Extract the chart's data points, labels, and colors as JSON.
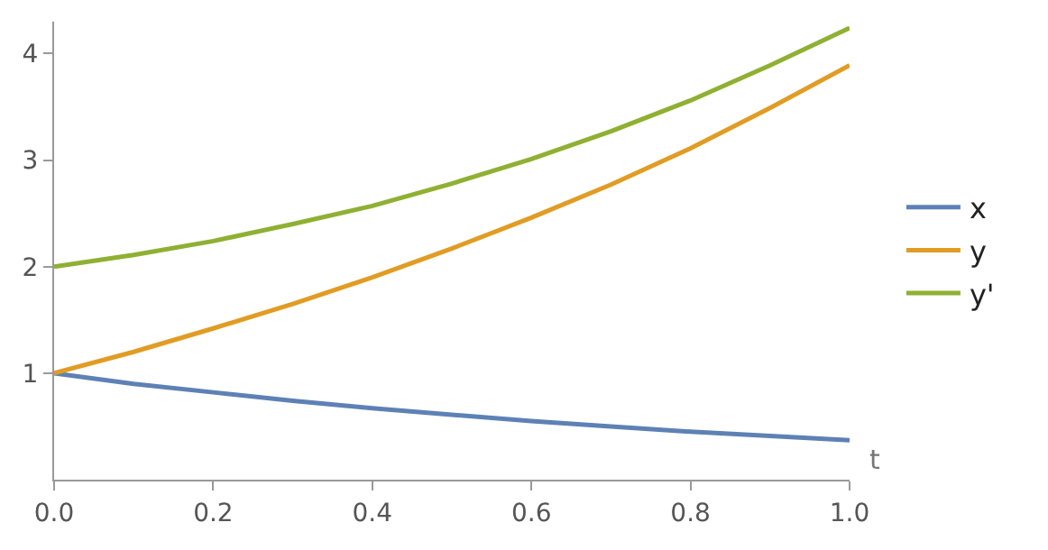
{
  "chart_data": {
    "type": "line",
    "xlabel": "t",
    "x": [
      0,
      0.1,
      0.2,
      0.3,
      0.4,
      0.5,
      0.6,
      0.7,
      0.8,
      0.9,
      1.0
    ],
    "series": [
      {
        "name": "x",
        "color": "#5e81b5",
        "values": [
          1.0,
          0.9,
          0.82,
          0.74,
          0.67,
          0.61,
          0.55,
          0.5,
          0.45,
          0.41,
          0.37
        ]
      },
      {
        "name": "y",
        "color": "#e19c24",
        "values": [
          1.0,
          1.2,
          1.42,
          1.65,
          1.9,
          2.17,
          2.46,
          2.77,
          3.11,
          3.49,
          3.89
        ]
      },
      {
        "name": "y'",
        "color": "#8fb032",
        "values": [
          2.0,
          2.11,
          2.24,
          2.4,
          2.57,
          2.78,
          3.01,
          3.27,
          3.56,
          3.89,
          4.24
        ]
      }
    ],
    "xlim": [
      0,
      1.0
    ],
    "ylim": [
      0,
      4.3
    ],
    "xticks": [
      {
        "value": 0,
        "label": "0.0"
      },
      0.2,
      0.4,
      0.6,
      0.8,
      {
        "value": 1.0,
        "label": "1.0"
      }
    ],
    "yticks": [
      1,
      2,
      3,
      4
    ],
    "legend": "right",
    "marker": "none",
    "line_style": "solid"
  }
}
